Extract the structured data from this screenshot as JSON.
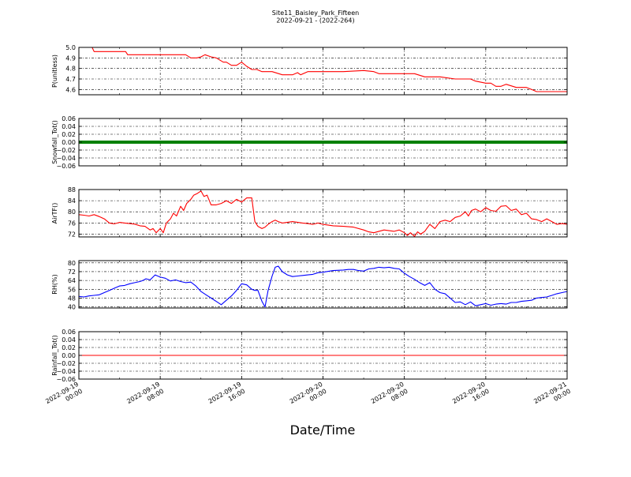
{
  "chart_data": {
    "type": "line",
    "title": "Site11_Baisley_Park_Fifteen",
    "subtitle": "2022-09-21 - (2022-264)",
    "xlabel": "Date/Time",
    "x_ticks": [
      {
        "line1": "2022-09-19",
        "line2": "00:00"
      },
      {
        "line1": "2022-09-19",
        "line2": "08:00"
      },
      {
        "line1": "2022-09-19",
        "line2": "16:00"
      },
      {
        "line1": "2022-09-20",
        "line2": "00:00"
      },
      {
        "line1": "2022-09-20",
        "line2": "08:00"
      },
      {
        "line1": "2022-09-20",
        "line2": "16:00"
      },
      {
        "line1": "2022-09-21",
        "line2": "00:00"
      }
    ],
    "x_range_hours": [
      0,
      48
    ],
    "grid": true,
    "panels": [
      {
        "ylabel": "P(unitless)",
        "ylim": [
          4.55,
          5.0
        ],
        "yticks": [
          "4.6",
          "4.7",
          "4.8",
          "4.9",
          "5.0"
        ],
        "ytick_values": [
          4.6,
          4.7,
          4.8,
          4.9,
          5.0
        ],
        "color": "#ff0000",
        "style": "line",
        "x": [
          0,
          1.3,
          1.5,
          3.0,
          3.3,
          4.6,
          4.8,
          6.0,
          9.0,
          10.5,
          11.0,
          11.6,
          12.0,
          12.4,
          13.0,
          13.5,
          14.2,
          14.5,
          15.0,
          15.5,
          16.0,
          16.5,
          17.0,
          17.5,
          18.0,
          18.4,
          19.0,
          20.0,
          21.0,
          21.5,
          21.8,
          22.5,
          24.0,
          26.0,
          28.0,
          29.0,
          29.5,
          30.0,
          32.0,
          33.0,
          34.0,
          35.5,
          37.0,
          38.0,
          38.5,
          39.0,
          40.0,
          40.5,
          41.0,
          41.5,
          42.0,
          43.0,
          44.0,
          44.5,
          45.0,
          46.0,
          48.0
        ],
        "y": [
          5.0,
          5.0,
          4.96,
          4.96,
          4.96,
          4.96,
          4.93,
          4.93,
          4.93,
          4.93,
          4.9,
          4.9,
          4.91,
          4.93,
          4.91,
          4.9,
          4.86,
          4.86,
          4.83,
          4.83,
          4.86,
          4.82,
          4.79,
          4.79,
          4.77,
          4.77,
          4.77,
          4.74,
          4.74,
          4.76,
          4.74,
          4.77,
          4.77,
          4.77,
          4.78,
          4.77,
          4.75,
          4.75,
          4.75,
          4.75,
          4.72,
          4.72,
          4.7,
          4.7,
          4.7,
          4.68,
          4.66,
          4.66,
          4.63,
          4.63,
          4.65,
          4.62,
          4.62,
          4.6,
          4.58,
          4.58,
          4.58
        ]
      },
      {
        "ylabel": "Snowfall_Tot()",
        "ylim": [
          -0.06,
          0.06
        ],
        "yticks": [
          "−0.06",
          "−0.04",
          "−0.02",
          "0.00",
          "0.02",
          "0.04",
          "0.06"
        ],
        "ytick_values": [
          -0.06,
          -0.04,
          -0.02,
          0.0,
          0.02,
          0.04,
          0.06
        ],
        "color": "#008000",
        "style": "thick",
        "x": [
          0,
          48
        ],
        "y": [
          0.0,
          0.0
        ]
      },
      {
        "ylabel": "AirTF()",
        "ylim": [
          71,
          88
        ],
        "yticks": [
          "72",
          "76",
          "80",
          "84",
          "88"
        ],
        "ytick_values": [
          72,
          76,
          80,
          84,
          88
        ],
        "color": "#ff0000",
        "style": "line",
        "x": [
          0,
          0.5,
          1.0,
          1.5,
          2.0,
          2.5,
          3.0,
          3.5,
          4.0,
          4.5,
          5.0,
          5.5,
          6.0,
          6.5,
          7.0,
          7.3,
          7.6,
          8.0,
          8.3,
          8.6,
          9.0,
          9.3,
          9.6,
          10.0,
          10.3,
          10.6,
          11.0,
          11.3,
          11.6,
          12.0,
          12.3,
          12.6,
          13.0,
          13.5,
          14.0,
          14.5,
          15.0,
          15.5,
          16.0,
          16.5,
          17.0,
          17.3,
          17.6,
          18.0,
          18.3,
          18.6,
          19.0,
          19.3,
          19.6,
          20.0,
          21.0,
          22.0,
          22.5,
          23.0,
          23.5,
          24.0,
          25.0,
          26.0,
          27.0,
          28.0,
          28.5,
          29.0,
          30.0,
          31.0,
          31.5,
          32.0,
          32.3,
          32.6,
          33.0,
          33.3,
          33.6,
          34.0,
          34.5,
          35.0,
          35.5,
          36.0,
          36.5,
          37.0,
          37.5,
          38.0,
          38.3,
          38.6,
          39.0,
          39.5,
          40.0,
          40.5,
          41.0,
          41.5,
          42.0,
          42.5,
          43.0,
          43.5,
          44.0,
          44.5,
          45.0,
          45.5,
          46.0,
          46.5,
          47.0,
          47.5,
          48.0
        ],
        "y": [
          79,
          78.8,
          78.5,
          79,
          78.3,
          77.5,
          76,
          75.7,
          76.2,
          76,
          75.8,
          75.6,
          75,
          74.8,
          73.5,
          74,
          72.5,
          74,
          72.5,
          76,
          77.5,
          79.5,
          78.5,
          82,
          80.5,
          83,
          84.5,
          86,
          86.5,
          87.5,
          85.5,
          86,
          82.5,
          82.5,
          83,
          84,
          83,
          84.5,
          83.5,
          85,
          85,
          76.5,
          74.8,
          74,
          74.5,
          75.5,
          76.5,
          77,
          76.5,
          76,
          76.5,
          76,
          75.8,
          75.5,
          76,
          75.5,
          75,
          74.8,
          74.5,
          73.5,
          72.8,
          72.5,
          73.5,
          73,
          73.5,
          72.5,
          71.5,
          72.5,
          71.2,
          72.8,
          72,
          73,
          75.5,
          74,
          76.5,
          77,
          76.5,
          78,
          78.5,
          80,
          78.5,
          80.5,
          81,
          80,
          81.5,
          80.5,
          80.2,
          82,
          82.2,
          80.5,
          81,
          79,
          79.5,
          77.5,
          77.2,
          76.5,
          77.5,
          76.5,
          75.5,
          75.8,
          75.5
        ]
      },
      {
        "ylabel": "RH(%)",
        "ylim": [
          39,
          82
        ],
        "yticks": [
          "40",
          "48",
          "56",
          "64",
          "72",
          "80"
        ],
        "ytick_values": [
          40,
          48,
          56,
          64,
          72,
          80
        ],
        "color": "#0000ff",
        "style": "line",
        "x": [
          0,
          0.5,
          1.0,
          1.5,
          2.0,
          2.5,
          3.0,
          3.5,
          4.0,
          4.5,
          5.0,
          5.5,
          6.0,
          6.3,
          6.6,
          7.0,
          7.5,
          8.0,
          8.5,
          9.0,
          9.5,
          10.0,
          10.5,
          11.0,
          11.5,
          12.0,
          12.5,
          13.0,
          13.5,
          14.0,
          14.5,
          15.0,
          15.5,
          16.0,
          16.5,
          17.0,
          17.3,
          17.6,
          18.0,
          18.3,
          18.6,
          19.0,
          19.3,
          19.6,
          20.0,
          20.5,
          21.0,
          21.5,
          22.0,
          22.5,
          23.0,
          23.5,
          24.0,
          25.0,
          26.0,
          26.5,
          27.0,
          27.5,
          28.0,
          28.5,
          29.0,
          29.5,
          30.0,
          30.5,
          31.0,
          31.5,
          32.0,
          32.5,
          33.0,
          33.5,
          34.0,
          34.5,
          35.0,
          35.5,
          36.0,
          36.5,
          37.0,
          37.5,
          38.0,
          38.5,
          39.0,
          39.5,
          40.0,
          40.5,
          41.0,
          41.5,
          42.0,
          42.5,
          43.0,
          43.5,
          44.0,
          44.5,
          45.0,
          45.5,
          46.0,
          46.5,
          47.0,
          47.5,
          48.0
        ],
        "y": [
          49.5,
          49,
          50,
          50.5,
          51,
          53,
          55,
          57,
          59,
          59.5,
          61,
          62,
          63,
          64,
          65.5,
          64.5,
          69,
          67,
          66,
          63.5,
          64.5,
          63,
          62,
          62.5,
          59,
          54,
          51,
          48,
          45,
          42,
          46,
          50,
          55,
          61,
          60,
          56,
          55,
          55,
          45,
          40,
          55,
          68,
          76,
          77,
          72,
          69,
          67.5,
          68,
          68.5,
          69,
          69.5,
          71,
          71.5,
          73,
          73.5,
          74,
          74,
          73,
          72.5,
          74.5,
          75,
          76,
          75.5,
          76,
          75,
          74.5,
          70.5,
          67.5,
          65,
          62,
          59.5,
          62,
          56,
          53,
          52,
          48,
          44,
          44.5,
          42,
          44.5,
          41,
          42,
          43,
          41.5,
          42.5,
          43,
          42.5,
          44,
          44,
          45,
          45.5,
          46,
          48,
          48.5,
          49,
          50.5,
          52,
          53,
          54
        ]
      },
      {
        "ylabel": "Rainfall_Tot()",
        "ylim": [
          -0.06,
          0.06
        ],
        "yticks": [
          "−0.06",
          "−0.04",
          "−0.02",
          "0.00",
          "0.02",
          "0.04",
          "0.06"
        ],
        "ytick_values": [
          -0.06,
          -0.04,
          -0.02,
          0.0,
          0.02,
          0.04,
          0.06
        ],
        "color": "#ff0000",
        "style": "line",
        "x": [
          0,
          48
        ],
        "y": [
          0.0,
          0.0
        ]
      }
    ]
  }
}
